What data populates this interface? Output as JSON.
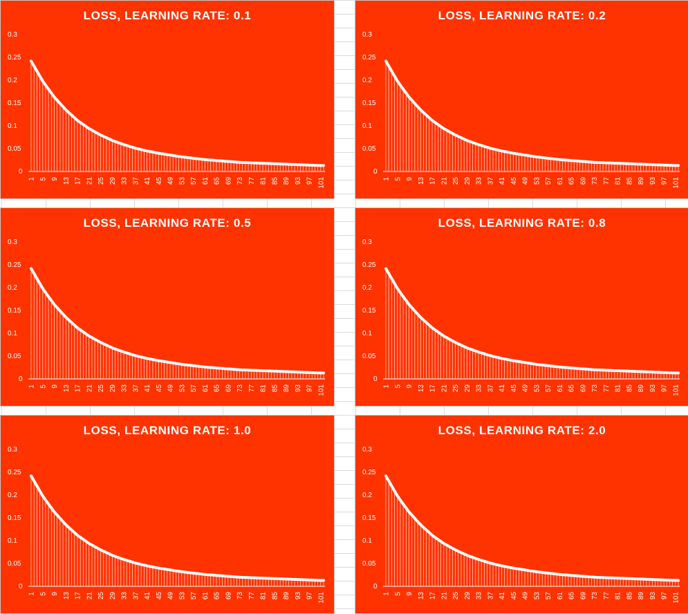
{
  "colors": {
    "panel_bg": "#ff3300",
    "mark": "#ffffff"
  },
  "chart_data": [
    {
      "type": "line",
      "title": "LOSS, LEARNING RATE:  0.1",
      "y_ticks": [
        "0.3",
        "0.25",
        "0.2",
        "0.15",
        "0.1",
        "0.05",
        "0"
      ],
      "ylim": [
        0,
        0.3
      ],
      "x_ticks": [
        "1",
        "5",
        "9",
        "13",
        "17",
        "21",
        "25",
        "29",
        "33",
        "37",
        "41",
        "45",
        "49",
        "53",
        "57",
        "61",
        "65",
        "69",
        "73",
        "77",
        "81",
        "85",
        "89",
        "93",
        "97",
        "101"
      ],
      "series": [
        {
          "x_start": 1,
          "x_end": 102,
          "values_at_ticks": [
            0.242,
            0.198,
            0.163,
            0.135,
            0.112,
            0.094,
            0.08,
            0.068,
            0.059,
            0.051,
            0.045,
            0.04,
            0.036,
            0.032,
            0.029,
            0.026,
            0.024,
            0.022,
            0.02,
            0.019,
            0.018,
            0.017,
            0.016,
            0.015,
            0.014,
            0.013
          ],
          "final_value": 0.013
        }
      ],
      "grid": false
    },
    {
      "type": "line",
      "title": "LOSS, LEARNING RATE:  0.2",
      "y_ticks": [
        "0.3",
        "0.25",
        "0.2",
        "0.15",
        "0.1",
        "0.05",
        "0"
      ],
      "ylim": [
        0,
        0.3
      ],
      "x_ticks": [
        "1",
        "5",
        "9",
        "13",
        "17",
        "21",
        "25",
        "29",
        "33",
        "37",
        "41",
        "45",
        "49",
        "53",
        "57",
        "61",
        "65",
        "69",
        "73",
        "77",
        "81",
        "85",
        "89",
        "93",
        "97",
        "101"
      ],
      "series": [
        {
          "x_start": 1,
          "x_end": 102,
          "values_at_ticks": [
            0.242,
            0.198,
            0.163,
            0.135,
            0.112,
            0.094,
            0.08,
            0.068,
            0.059,
            0.051,
            0.045,
            0.04,
            0.036,
            0.032,
            0.029,
            0.026,
            0.024,
            0.022,
            0.02,
            0.019,
            0.018,
            0.017,
            0.016,
            0.015,
            0.014,
            0.013
          ],
          "final_value": 0.013
        }
      ],
      "grid": false
    },
    {
      "type": "line",
      "title": "LOSS, LEARNING RATE:  0.5",
      "y_ticks": [
        "0.3",
        "0.25",
        "0.2",
        "0.15",
        "0.1",
        "0.05",
        "0"
      ],
      "ylim": [
        0,
        0.3
      ],
      "x_ticks": [
        "1",
        "5",
        "9",
        "13",
        "17",
        "21",
        "25",
        "29",
        "33",
        "37",
        "41",
        "45",
        "49",
        "53",
        "57",
        "61",
        "65",
        "69",
        "73",
        "77",
        "81",
        "85",
        "89",
        "93",
        "97",
        "101"
      ],
      "series": [
        {
          "x_start": 1,
          "x_end": 102,
          "values_at_ticks": [
            0.242,
            0.198,
            0.163,
            0.135,
            0.112,
            0.094,
            0.08,
            0.068,
            0.059,
            0.051,
            0.045,
            0.04,
            0.036,
            0.032,
            0.029,
            0.026,
            0.024,
            0.022,
            0.02,
            0.019,
            0.018,
            0.017,
            0.016,
            0.015,
            0.014,
            0.013
          ],
          "final_value": 0.013
        }
      ],
      "grid": false
    },
    {
      "type": "line",
      "title": "LOSS, LEARNING RATE:  0.8",
      "y_ticks": [
        "0.3",
        "0.25",
        "0.2",
        "0.15",
        "0.1",
        "0.05",
        "0"
      ],
      "ylim": [
        0,
        0.3
      ],
      "x_ticks": [
        "1",
        "5",
        "9",
        "13",
        "17",
        "21",
        "25",
        "29",
        "33",
        "37",
        "41",
        "45",
        "49",
        "53",
        "57",
        "61",
        "65",
        "69",
        "73",
        "77",
        "81",
        "85",
        "89",
        "93",
        "97",
        "101"
      ],
      "series": [
        {
          "x_start": 1,
          "x_end": 102,
          "values_at_ticks": [
            0.242,
            0.198,
            0.163,
            0.135,
            0.112,
            0.094,
            0.08,
            0.068,
            0.059,
            0.051,
            0.045,
            0.04,
            0.036,
            0.032,
            0.029,
            0.026,
            0.024,
            0.022,
            0.02,
            0.019,
            0.018,
            0.017,
            0.016,
            0.015,
            0.014,
            0.013
          ],
          "final_value": 0.013
        }
      ],
      "grid": false
    },
    {
      "type": "line",
      "title": "LOSS, LEARNING RATE:  1.0",
      "y_ticks": [
        "0.3",
        "0.25",
        "0.2",
        "0.15",
        "0.1",
        "0.05",
        "0"
      ],
      "ylim": [
        0,
        0.3
      ],
      "x_ticks": [
        "1",
        "5",
        "9",
        "13",
        "17",
        "21",
        "25",
        "29",
        "33",
        "37",
        "41",
        "45",
        "49",
        "53",
        "57",
        "61",
        "65",
        "69",
        "73",
        "77",
        "81",
        "85",
        "89",
        "93",
        "97",
        "101"
      ],
      "series": [
        {
          "x_start": 1,
          "x_end": 102,
          "values_at_ticks": [
            0.242,
            0.198,
            0.163,
            0.135,
            0.112,
            0.094,
            0.08,
            0.068,
            0.059,
            0.051,
            0.045,
            0.04,
            0.036,
            0.032,
            0.029,
            0.026,
            0.024,
            0.022,
            0.02,
            0.019,
            0.018,
            0.017,
            0.016,
            0.015,
            0.014,
            0.013
          ],
          "final_value": 0.013
        }
      ],
      "grid": false
    },
    {
      "type": "line",
      "title": "LOSS, LEARNING RATE:  2.0",
      "y_ticks": [
        "0.3",
        "0.25",
        "0.2",
        "0.15",
        "0.1",
        "0.05",
        "0"
      ],
      "ylim": [
        0,
        0.3
      ],
      "x_ticks": [
        "1",
        "5",
        "9",
        "13",
        "17",
        "21",
        "25",
        "29",
        "33",
        "37",
        "41",
        "45",
        "49",
        "53",
        "57",
        "61",
        "65",
        "69",
        "73",
        "77",
        "81",
        "85",
        "89",
        "93",
        "97",
        "101"
      ],
      "series": [
        {
          "x_start": 1,
          "x_end": 102,
          "values_at_ticks": [
            0.242,
            0.198,
            0.163,
            0.135,
            0.112,
            0.094,
            0.08,
            0.068,
            0.059,
            0.051,
            0.045,
            0.04,
            0.036,
            0.032,
            0.029,
            0.026,
            0.024,
            0.022,
            0.02,
            0.019,
            0.018,
            0.017,
            0.016,
            0.015,
            0.014,
            0.013
          ],
          "final_value": 0.013
        }
      ],
      "grid": false
    }
  ]
}
